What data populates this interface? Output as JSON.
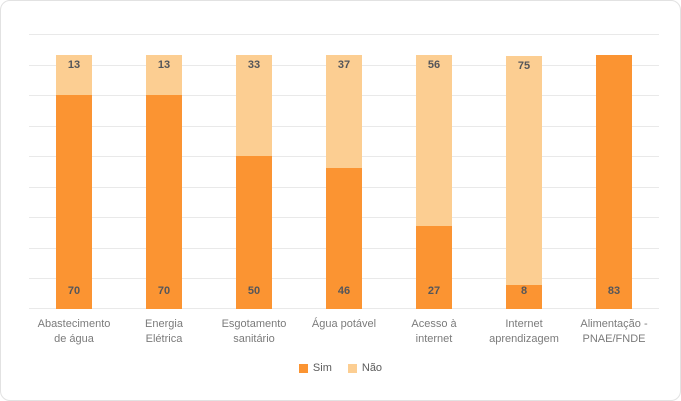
{
  "chart_data": {
    "type": "bar",
    "stacked": true,
    "title": "",
    "xlabel": "",
    "ylabel": "",
    "categories": [
      "Abastecimento\nde água",
      "Energia\nElétrica",
      "Esgotamento\nsanitário",
      "Água potável",
      "Acesso à\ninternet",
      "Internet\naprendizagem",
      "Alimentação -\nPNAE/FNDE"
    ],
    "series": [
      {
        "name": "Sim",
        "color": "#fb9432",
        "values": [
          70,
          70,
          50,
          46,
          27,
          8,
          83
        ]
      },
      {
        "name": "Não",
        "color": "#fcce92",
        "values": [
          13,
          13,
          33,
          37,
          56,
          75,
          0
        ]
      }
    ],
    "ylim": [
      0,
      90
    ],
    "grid_step": 10,
    "grid": true,
    "y_axis_labels_visible": false,
    "legend_position": "bottom",
    "value_label_color": "#55565a",
    "gridline_color": "#e9e9e9"
  }
}
